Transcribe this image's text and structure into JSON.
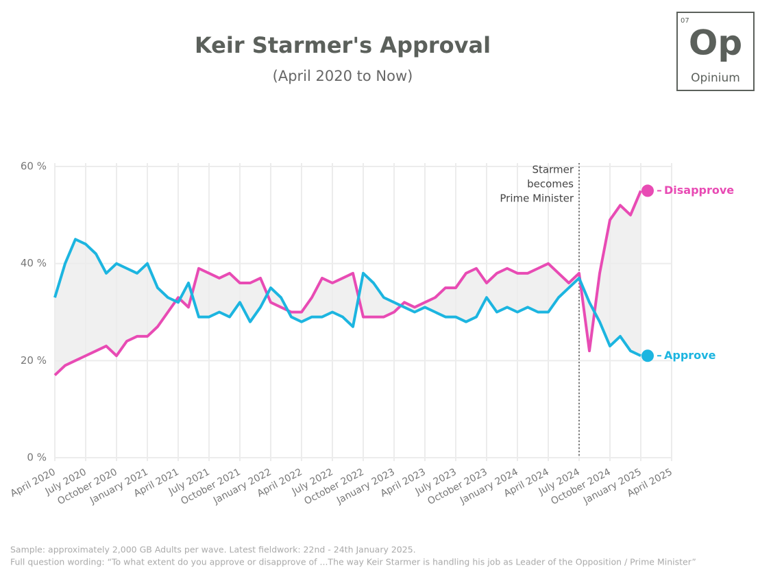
{
  "chart_data": {
    "type": "line",
    "title": "Keir Starmer's Approval",
    "subtitle": "(April 2020 to Now)",
    "logo": {
      "number": "07",
      "symbol": "Op",
      "name": "Opinium"
    },
    "x": [
      "April 2020",
      "May 2020",
      "June 2020",
      "July 2020",
      "August 2020",
      "September 2020",
      "October 2020",
      "November 2020",
      "December 2020",
      "January 2021",
      "February 2021",
      "March 2021",
      "April 2021",
      "May 2021",
      "June 2021",
      "July 2021",
      "August 2021",
      "September 2021",
      "October 2021",
      "November 2021",
      "December 2021",
      "January 2022",
      "February 2022",
      "March 2022",
      "April 2022",
      "May 2022",
      "June 2022",
      "July 2022",
      "August 2022",
      "September 2022",
      "October 2022",
      "November 2022",
      "December 2022",
      "January 2023",
      "February 2023",
      "March 2023",
      "April 2023",
      "May 2023",
      "June 2023",
      "July 2023",
      "August 2023",
      "September 2023",
      "October 2023",
      "November 2023",
      "December 2023",
      "January 2024",
      "February 2024",
      "March 2024",
      "April 2024",
      "May 2024",
      "June 2024",
      "July 2024",
      "August 2024",
      "September 2024",
      "October 2024",
      "November 2024",
      "December 2024",
      "January 2025"
    ],
    "series": [
      {
        "name": "Disapprove",
        "color": "#e84bb4",
        "values": [
          17,
          19,
          20,
          21,
          22,
          23,
          21,
          24,
          25,
          25,
          27,
          30,
          33,
          31,
          39,
          38,
          37,
          38,
          36,
          36,
          37,
          32,
          31,
          30,
          30,
          33,
          37,
          36,
          37,
          38,
          29,
          29,
          29,
          30,
          32,
          31,
          32,
          33,
          35,
          35,
          38,
          39,
          36,
          38,
          39,
          38,
          38,
          39,
          40,
          38,
          36,
          38,
          22,
          38,
          49,
          52,
          50,
          55
        ]
      },
      {
        "name": "Approve",
        "color": "#1cb5e0",
        "values": [
          33,
          40,
          45,
          44,
          42,
          38,
          40,
          39,
          38,
          40,
          35,
          33,
          32,
          36,
          29,
          29,
          30,
          29,
          32,
          28,
          31,
          35,
          33,
          29,
          28,
          29,
          29,
          30,
          29,
          27,
          38,
          36,
          33,
          32,
          31,
          30,
          31,
          30,
          29,
          29,
          28,
          29,
          33,
          30,
          31,
          30,
          31,
          30,
          30,
          33,
          35,
          37,
          32,
          28,
          23,
          25,
          22,
          21
        ]
      }
    ],
    "xlim": [
      "April 2020",
      "April 2025"
    ],
    "xticks": [
      "April 2020",
      "July 2020",
      "October 2020",
      "January 2021",
      "April 2021",
      "July 2021",
      "October 2021",
      "January 2022",
      "April 2022",
      "July 2022",
      "October 2022",
      "January 2023",
      "April 2023",
      "July 2023",
      "October 2023",
      "January 2024",
      "April 2024",
      "July 2024",
      "October 2024",
      "January 2025",
      "April 2025"
    ],
    "ylim": [
      0,
      60
    ],
    "yticks": [
      {
        "value": 0,
        "label": "0 %"
      },
      {
        "value": 20,
        "label": "20 %"
      },
      {
        "value": 40,
        "label": "40 %"
      },
      {
        "value": 60,
        "label": "60 %"
      }
    ],
    "grid": true,
    "annotation": {
      "x": "July 2024",
      "text": [
        "Starmer",
        "becomes",
        "Prime Minister"
      ]
    },
    "notes": [
      "Sample: approximately 2,000 GB Adults per wave. Latest fieldwork: 22nd - 24th January 2025.",
      "Full question wording: “To what extent do you approve or disapprove of ...The way Keir Starmer is handling his job as Leader of the Opposition / Prime Minister”"
    ]
  }
}
